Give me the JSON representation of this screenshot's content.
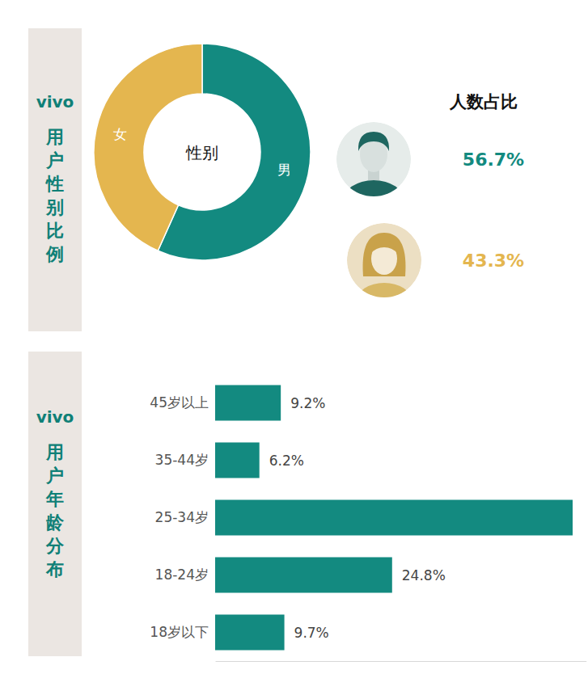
{
  "chart_data": [
    {
      "type": "pie",
      "title": "vivo 用户性别比例",
      "annotations": [
        "性别",
        "人数占比"
      ],
      "categories": [
        "男",
        "女"
      ],
      "values": [
        56.7,
        43.3
      ],
      "colors": [
        "#138a80",
        "#e4b64f"
      ],
      "data_labels": true,
      "value_labels": [
        "56.7%",
        "43.3%"
      ]
    },
    {
      "type": "bar",
      "title": "vivo 用户年龄分布",
      "orientation": "horizontal",
      "categories": [
        "45岁以上",
        "35-44岁",
        "25-34岁",
        "18-24岁",
        "18岁以下"
      ],
      "values": [
        9.2,
        6.2,
        50.1,
        24.8,
        9.7
      ],
      "value_labels": [
        "9.2%",
        "6.2%",
        null,
        "24.8%",
        "9.7%"
      ],
      "data_labels": true,
      "color": "#138a80",
      "xlim": [
        0,
        52
      ],
      "xticks": [],
      "tick_labels": "y",
      "grid": false
    }
  ]
}
